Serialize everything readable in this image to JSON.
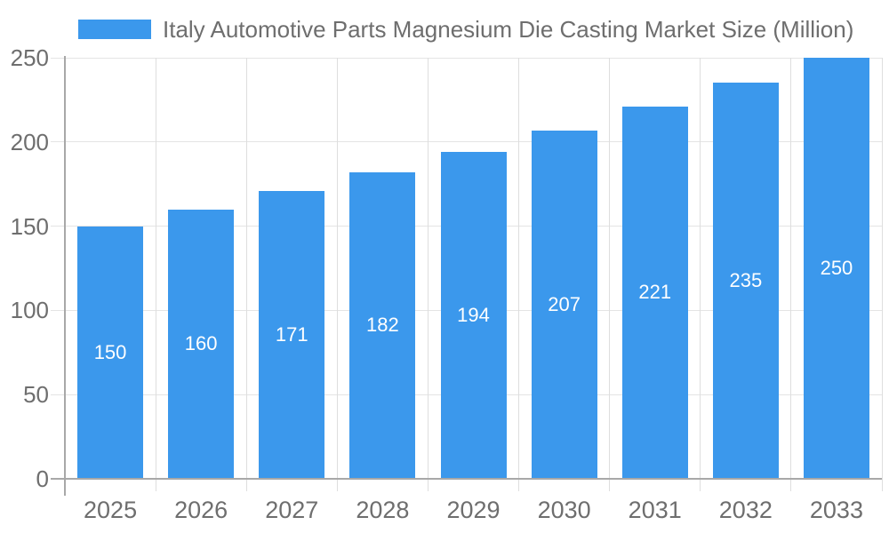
{
  "chart_data": {
    "type": "bar",
    "title": "Italy Automotive Parts Magnesium Die Casting Market Size (Million)",
    "categories": [
      "2025",
      "2026",
      "2027",
      "2028",
      "2029",
      "2030",
      "2031",
      "2032",
      "2033"
    ],
    "values": [
      150,
      160,
      171,
      182,
      194,
      207,
      221,
      235,
      250
    ],
    "xlabel": "",
    "ylabel": "",
    "ylim": [
      0,
      250
    ],
    "ytick_step": 50,
    "ytick_labels": [
      "0",
      "50",
      "100",
      "150",
      "200",
      "250"
    ],
    "grid": true,
    "legend_position": "top-left",
    "value_labels_inside_bars": true,
    "colors": {
      "bar": "#3b98ec",
      "bar_value_text": "#ffffff",
      "axis_text": "#6e6e6e",
      "title_text": "#6e6e6e",
      "axis_line": "#a8a8a8",
      "gridline": "#e4e4e4",
      "vertical_gridline": "#dedede"
    }
  }
}
